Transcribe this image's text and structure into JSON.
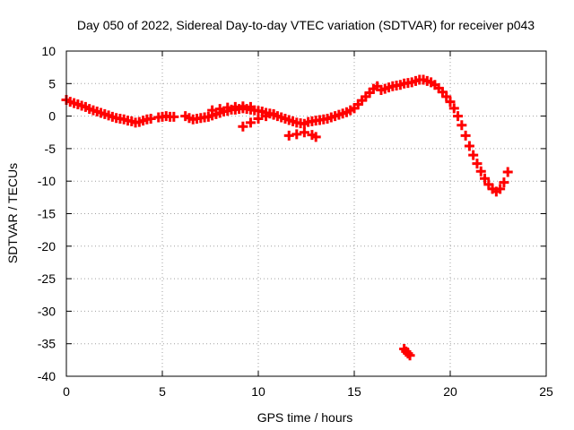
{
  "colors": {
    "data": "#ff0000",
    "grid": "#a0a0a0",
    "axis": "#000000",
    "background": "#ffffff"
  },
  "chart_data": {
    "type": "scatter",
    "title": "Day 050 of 2022, Sidereal Day-to-day VTEC variation (SDTVAR) for receiver p043",
    "xlabel": "GPS time / hours",
    "ylabel": "SDTVAR / TECUs",
    "xlim": [
      0,
      25
    ],
    "ylim": [
      -40,
      10
    ],
    "xticks": [
      0,
      5,
      10,
      15,
      20,
      25
    ],
    "yticks": [
      10,
      5,
      0,
      -5,
      -10,
      -15,
      -20,
      -25,
      -30,
      -35,
      -40
    ],
    "grid": true,
    "series": [
      {
        "name": "SDTVAR",
        "color": "#ff0000",
        "points": [
          [
            0.0,
            2.5
          ],
          [
            0.2,
            2.2
          ],
          [
            0.4,
            2.0
          ],
          [
            0.6,
            1.8
          ],
          [
            0.8,
            1.6
          ],
          [
            1.0,
            1.4
          ],
          [
            1.2,
            1.1
          ],
          [
            1.4,
            0.9
          ],
          [
            1.6,
            0.7
          ],
          [
            1.8,
            0.5
          ],
          [
            2.0,
            0.3
          ],
          [
            2.2,
            0.1
          ],
          [
            2.4,
            -0.1
          ],
          [
            2.6,
            -0.3
          ],
          [
            2.8,
            -0.4
          ],
          [
            3.0,
            -0.5
          ],
          [
            3.2,
            -0.7
          ],
          [
            3.4,
            -0.8
          ],
          [
            3.6,
            -1.0
          ],
          [
            3.8,
            -0.9
          ],
          [
            4.0,
            -0.7
          ],
          [
            4.2,
            -0.5
          ],
          [
            4.4,
            -0.4
          ],
          [
            4.8,
            -0.2
          ],
          [
            5.0,
            -0.1
          ],
          [
            5.2,
            0.0
          ],
          [
            5.4,
            -0.1
          ],
          [
            5.6,
            -0.1
          ],
          [
            6.2,
            0.0
          ],
          [
            6.4,
            -0.3
          ],
          [
            6.6,
            -0.5
          ],
          [
            6.8,
            -0.4
          ],
          [
            7.0,
            -0.3
          ],
          [
            7.2,
            -0.2
          ],
          [
            7.4,
            -0.1
          ],
          [
            7.6,
            0.1
          ],
          [
            7.8,
            0.3
          ],
          [
            8.0,
            0.5
          ],
          [
            8.2,
            0.7
          ],
          [
            8.4,
            0.8
          ],
          [
            8.6,
            1.0
          ],
          [
            8.8,
            1.0
          ],
          [
            9.0,
            1.1
          ],
          [
            9.2,
            1.2
          ],
          [
            9.4,
            1.1
          ],
          [
            9.6,
            1.0
          ],
          [
            9.8,
            0.9
          ],
          [
            10.0,
            0.8
          ],
          [
            10.2,
            0.7
          ],
          [
            10.4,
            0.5
          ],
          [
            10.6,
            0.4
          ],
          [
            10.8,
            0.2
          ],
          [
            11.0,
            0.0
          ],
          [
            11.2,
            -0.2
          ],
          [
            11.4,
            -0.4
          ],
          [
            11.6,
            -0.6
          ],
          [
            11.8,
            -0.8
          ],
          [
            12.0,
            -1.0
          ],
          [
            12.2,
            -1.1
          ],
          [
            12.4,
            -1.2
          ],
          [
            12.6,
            -0.9
          ],
          [
            12.8,
            -0.8
          ],
          [
            13.0,
            -0.7
          ],
          [
            13.2,
            -0.6
          ],
          [
            13.4,
            -0.5
          ],
          [
            13.6,
            -0.4
          ],
          [
            13.8,
            -0.2
          ],
          [
            14.0,
            0.0
          ],
          [
            14.2,
            0.2
          ],
          [
            14.4,
            0.4
          ],
          [
            14.6,
            0.6
          ],
          [
            14.8,
            0.9
          ],
          [
            15.0,
            1.2
          ],
          [
            15.2,
            1.8
          ],
          [
            15.4,
            2.4
          ],
          [
            15.6,
            3.0
          ],
          [
            15.8,
            3.6
          ],
          [
            16.0,
            4.2
          ],
          [
            16.2,
            4.6
          ],
          [
            16.4,
            4.0
          ],
          [
            16.6,
            4.2
          ],
          [
            16.8,
            4.4
          ],
          [
            17.0,
            4.6
          ],
          [
            17.2,
            4.7
          ],
          [
            17.4,
            4.8
          ],
          [
            17.6,
            5.0
          ],
          [
            17.8,
            5.1
          ],
          [
            18.0,
            5.2
          ],
          [
            18.2,
            5.4
          ],
          [
            18.4,
            5.6
          ],
          [
            18.6,
            5.6
          ],
          [
            18.8,
            5.4
          ],
          [
            19.0,
            5.2
          ],
          [
            19.2,
            4.8
          ],
          [
            19.4,
            4.3
          ],
          [
            19.6,
            3.7
          ],
          [
            19.8,
            3.0
          ],
          [
            20.0,
            2.2
          ],
          [
            20.2,
            1.2
          ],
          [
            20.4,
            0.0
          ],
          [
            20.6,
            -1.4
          ],
          [
            20.8,
            -3.0
          ],
          [
            21.0,
            -4.6
          ],
          [
            21.2,
            -6.0
          ],
          [
            21.4,
            -7.3
          ],
          [
            21.6,
            -8.5
          ],
          [
            21.8,
            -9.6
          ],
          [
            22.0,
            -10.5
          ],
          [
            22.2,
            -11.2
          ],
          [
            22.4,
            -11.6
          ],
          [
            22.6,
            -11.2
          ],
          [
            22.8,
            -10.2
          ],
          [
            23.0,
            -8.6
          ],
          [
            7.6,
            0.9
          ],
          [
            8.0,
            1.1
          ],
          [
            8.4,
            1.3
          ],
          [
            8.8,
            1.4
          ],
          [
            9.2,
            1.5
          ],
          [
            9.6,
            1.4
          ],
          [
            9.2,
            -1.6
          ],
          [
            9.6,
            -1.0
          ],
          [
            10.0,
            -0.4
          ],
          [
            10.4,
            0.0
          ],
          [
            10.8,
            0.3
          ],
          [
            11.6,
            -3.0
          ],
          [
            12.0,
            -2.8
          ],
          [
            12.4,
            -2.5
          ],
          [
            12.8,
            -2.9
          ],
          [
            13.0,
            -3.2
          ],
          [
            17.6,
            -35.8
          ],
          [
            17.7,
            -36.2
          ],
          [
            17.8,
            -36.5
          ],
          [
            17.9,
            -36.8
          ]
        ]
      }
    ]
  }
}
